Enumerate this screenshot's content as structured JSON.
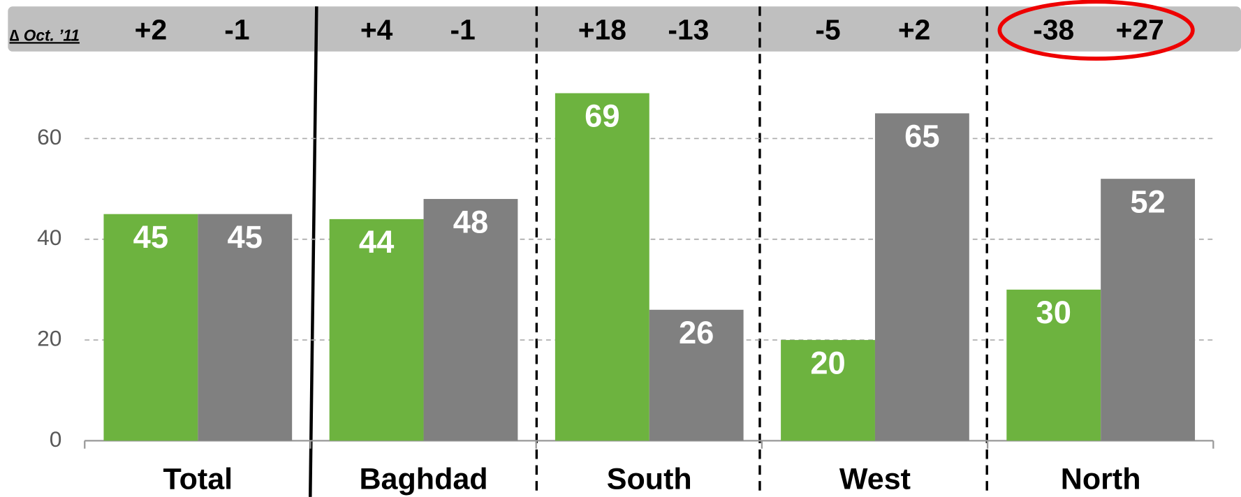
{
  "chart_data": {
    "type": "bar",
    "delta_label": "∆ Oct. ’11",
    "categories": [
      "Total",
      "Baghdad",
      "South",
      "West",
      "North"
    ],
    "series": [
      {
        "color": "#6db33f",
        "values": [
          45,
          44,
          69,
          20,
          30
        ],
        "deltas": [
          "+2",
          "+4",
          "+18",
          "-5",
          "-38"
        ]
      },
      {
        "color": "#808080",
        "values": [
          45,
          48,
          26,
          65,
          52
        ],
        "deltas": [
          "-1",
          "-1",
          "-13",
          "+2",
          "+27"
        ]
      }
    ],
    "ylim": [
      0,
      70
    ],
    "yticks": [
      0,
      20,
      40,
      60
    ],
    "grid": true
  }
}
